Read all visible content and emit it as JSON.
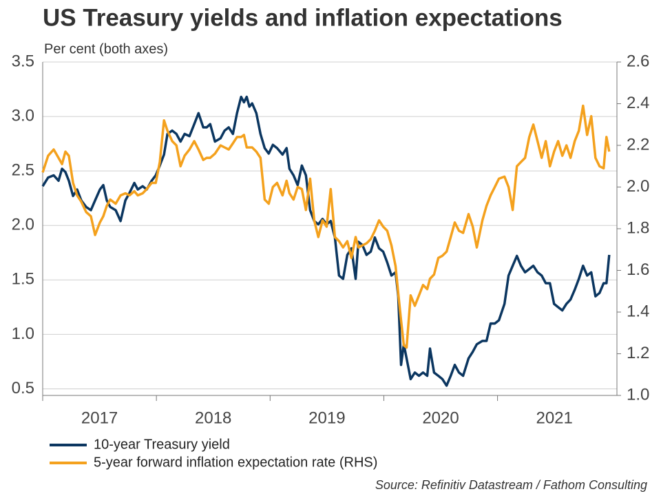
{
  "chart_data": {
    "type": "line",
    "title": "US Treasury yields and inflation expectations",
    "subtitle": "Per cent (both axes)",
    "source": "Source: Refinitiv Datastream / Fathom Consulting",
    "x": [
      2017.0,
      2017.048,
      2017.097,
      2017.139,
      2017.17,
      2017.2,
      2017.23,
      2017.267,
      2017.303,
      2017.339,
      2017.382,
      2017.424,
      2017.461,
      2017.503,
      2017.533,
      2017.564,
      2017.594,
      2017.642,
      2017.685,
      2017.727,
      2017.764,
      2017.806,
      2017.836,
      2017.879,
      2017.915,
      2017.958,
      2017.994,
      2018.03,
      2018.067,
      2018.097,
      2018.139,
      2018.176,
      2018.212,
      2018.248,
      2018.291,
      2018.333,
      2018.37,
      2018.412,
      2018.442,
      2018.473,
      2018.515,
      2018.564,
      2018.6,
      2018.636,
      2018.673,
      2018.709,
      2018.745,
      2018.77,
      2018.794,
      2018.818,
      2018.842,
      2018.879,
      2018.915,
      2018.952,
      2018.988,
      2019.024,
      2019.061,
      2019.109,
      2019.145,
      2019.17,
      2019.206,
      2019.242,
      2019.279,
      2019.315,
      2019.352,
      2019.388,
      2019.424,
      2019.461,
      2019.497,
      2019.533,
      2019.57,
      2019.606,
      2019.642,
      2019.679,
      2019.715,
      2019.752,
      2019.776,
      2019.812,
      2019.848,
      2019.885,
      2019.921,
      2019.958,
      2019.994,
      2020.03,
      2020.067,
      2020.103,
      2020.127,
      2020.152,
      2020.176,
      2020.2,
      2020.236,
      2020.273,
      2020.309,
      2020.345,
      2020.382,
      2020.406,
      2020.442,
      2020.479,
      2020.515,
      2020.552,
      2020.588,
      2020.624,
      2020.661,
      2020.697,
      2020.745,
      2020.782,
      2020.818,
      2020.867,
      2020.903,
      2020.939,
      2020.976,
      2021.012,
      2021.061,
      2021.097,
      2021.133,
      2021.17,
      2021.206,
      2021.242,
      2021.279,
      2021.315,
      2021.352,
      2021.388,
      2021.424,
      2021.461,
      2021.497,
      2021.533,
      2021.57,
      2021.606,
      2021.642,
      2021.679,
      2021.715,
      2021.752,
      2021.788,
      2021.824,
      2021.861,
      2021.897,
      2021.933,
      2021.958,
      2021.982
    ],
    "xlim": [
      2017,
      2022.05
    ],
    "xticks": [
      2017,
      2018,
      2019,
      2020,
      2021
    ],
    "ylim": [
      0.44,
      3.5
    ],
    "yticks": [
      0.5,
      1.0,
      1.5,
      2.0,
      2.5,
      3.0,
      3.5
    ],
    "y2lim": [
      1.0,
      2.6
    ],
    "y2ticks": [
      1.0,
      1.2,
      1.4,
      1.6,
      1.8,
      2.0,
      2.2,
      2.4,
      2.6
    ],
    "grid": true,
    "series": [
      {
        "name": "10-year Treasury yield",
        "color": "#0b3660",
        "axis": "y",
        "values": [
          2.36,
          2.44,
          2.46,
          2.41,
          2.52,
          2.49,
          2.41,
          2.27,
          2.33,
          2.23,
          2.17,
          2.14,
          2.23,
          2.33,
          2.37,
          2.23,
          2.17,
          2.14,
          2.04,
          2.23,
          2.3,
          2.39,
          2.33,
          2.36,
          2.33,
          2.41,
          2.46,
          2.55,
          2.65,
          2.84,
          2.87,
          2.84,
          2.77,
          2.84,
          2.82,
          2.93,
          3.03,
          2.9,
          2.9,
          2.93,
          2.77,
          2.8,
          2.87,
          2.9,
          2.84,
          3.03,
          3.18,
          3.13,
          3.18,
          3.09,
          3.12,
          3.03,
          2.84,
          2.71,
          2.66,
          2.74,
          2.71,
          2.65,
          2.71,
          2.52,
          2.46,
          2.37,
          2.55,
          2.46,
          2.14,
          2.04,
          2.01,
          2.06,
          2.01,
          2.04,
          1.89,
          1.54,
          1.51,
          1.73,
          1.79,
          1.51,
          1.85,
          1.82,
          1.73,
          1.76,
          1.89,
          1.79,
          1.76,
          1.66,
          1.54,
          1.57,
          1.35,
          0.72,
          0.91,
          0.78,
          0.59,
          0.65,
          0.62,
          0.65,
          0.62,
          0.87,
          0.65,
          0.62,
          0.59,
          0.53,
          0.62,
          0.72,
          0.65,
          0.62,
          0.78,
          0.84,
          0.91,
          0.94,
          0.94,
          1.1,
          1.1,
          1.13,
          1.28,
          1.54,
          1.63,
          1.72,
          1.63,
          1.57,
          1.6,
          1.63,
          1.57,
          1.54,
          1.47,
          1.47,
          1.28,
          1.25,
          1.22,
          1.28,
          1.32,
          1.41,
          1.51,
          1.63,
          1.54,
          1.57,
          1.35,
          1.38,
          1.47,
          1.47,
          1.73
        ]
      },
      {
        "name": "5-year forward inflation expectation rate (RHS)",
        "color": "#f4a11d",
        "axis": "y2",
        "values": [
          2.07,
          2.15,
          2.18,
          2.14,
          2.11,
          2.17,
          2.15,
          2.02,
          1.96,
          1.93,
          1.88,
          1.86,
          1.77,
          1.83,
          1.86,
          1.91,
          1.94,
          1.92,
          1.96,
          1.97,
          1.96,
          1.98,
          1.96,
          1.97,
          1.99,
          2.02,
          2.02,
          2.12,
          2.32,
          2.27,
          2.22,
          2.2,
          2.1,
          2.15,
          2.18,
          2.22,
          2.18,
          2.13,
          2.14,
          2.14,
          2.16,
          2.2,
          2.19,
          2.18,
          2.21,
          2.24,
          2.24,
          2.25,
          2.19,
          2.19,
          2.19,
          2.17,
          2.14,
          1.94,
          1.92,
          2.0,
          2.02,
          1.96,
          2.03,
          1.97,
          1.94,
          2.0,
          1.99,
          1.89,
          2.04,
          1.84,
          1.76,
          1.84,
          1.81,
          1.99,
          1.76,
          1.74,
          1.71,
          1.74,
          1.66,
          1.76,
          1.71,
          1.72,
          1.73,
          1.75,
          1.79,
          1.84,
          1.81,
          1.79,
          1.72,
          1.62,
          1.49,
          1.36,
          1.24,
          1.23,
          1.48,
          1.43,
          1.48,
          1.53,
          1.51,
          1.56,
          1.58,
          1.66,
          1.67,
          1.69,
          1.76,
          1.83,
          1.79,
          1.78,
          1.87,
          1.81,
          1.71,
          1.84,
          1.91,
          1.96,
          2.0,
          2.04,
          2.05,
          2.0,
          1.89,
          2.1,
          2.12,
          2.14,
          2.24,
          2.3,
          2.22,
          2.14,
          2.22,
          2.1,
          2.17,
          2.22,
          2.15,
          2.2,
          2.14,
          2.22,
          2.27,
          2.39,
          2.25,
          2.34,
          2.14,
          2.1,
          2.09,
          2.24,
          2.17
        ]
      }
    ]
  }
}
